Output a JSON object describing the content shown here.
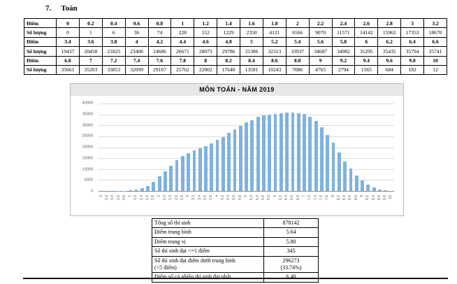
{
  "heading": {
    "number": "7.",
    "text": "Toán"
  },
  "score_table": {
    "score_label": "Điểm",
    "count_label": "Số lượng",
    "groups": [
      {
        "scores": [
          "0",
          "0.2",
          "0.4",
          "0.6",
          "0.8",
          "1",
          "1.2",
          "1.4",
          "1.6",
          "1.8",
          "2",
          "2.2",
          "2.4",
          "2.6",
          "2.8",
          "3",
          "3.2"
        ],
        "counts": [
          "0",
          "1",
          "6",
          "36",
          "74",
          "228",
          "552",
          "1229",
          "2350",
          "4121",
          "6566",
          "9070",
          "11571",
          "14142",
          "15962",
          "17353",
          "18670"
        ]
      },
      {
        "scores": [
          "3.4",
          "3.6",
          "3.8",
          "4",
          "4.2",
          "4.4",
          "4.6",
          "4.8",
          "5",
          "5.2",
          "5.4",
          "5.6",
          "5.8",
          "6",
          "6.2",
          "6.4",
          "6.6"
        ],
        "counts": [
          "19437",
          "20458",
          "21825",
          "23406",
          "24686",
          "26671",
          "28073",
          "29786",
          "31386",
          "32313",
          "33937",
          "34687",
          "34982",
          "35295",
          "35435",
          "35794",
          "35741"
        ]
      },
      {
        "scores": [
          "6.8",
          "7",
          "7.2",
          "7.4",
          "7.6",
          "7.8",
          "8",
          "8.2",
          "8.4",
          "8.6",
          "8.8",
          "9",
          "9.2",
          "9.4",
          "9.6",
          "9.8",
          "10"
        ],
        "counts": [
          "35661",
          "35203",
          "33853",
          "32099",
          "29167",
          "25762",
          "22002",
          "17640",
          "13581",
          "10243",
          "7086",
          "4765",
          "2794",
          "1565",
          "684",
          "182",
          "12"
        ]
      }
    ]
  },
  "chart_data": {
    "type": "bar",
    "title": "MÔN TOÁN - NĂM 2019",
    "categories": [
      "0",
      "0.2",
      "0.4",
      "0.6",
      "0.8",
      "1",
      "1.2",
      "1.4",
      "1.6",
      "1.8",
      "2",
      "2.2",
      "2.4",
      "2.6",
      "2.8",
      "3",
      "3.2",
      "3.4",
      "3.6",
      "3.8",
      "4",
      "4.2",
      "4.4",
      "4.6",
      "4.8",
      "5",
      "5.2",
      "5.4",
      "5.6",
      "5.8",
      "6",
      "6.2",
      "6.4",
      "6.6",
      "6.8",
      "7",
      "7.2",
      "7.4",
      "7.6",
      "7.8",
      "8",
      "8.2",
      "8.4",
      "8.6",
      "8.8",
      "9",
      "9.2",
      "9.4",
      "9.6",
      "9.8",
      "10"
    ],
    "values": [
      0,
      1,
      6,
      36,
      74,
      228,
      552,
      1229,
      2350,
      4121,
      6566,
      9070,
      11571,
      14142,
      15962,
      17353,
      18670,
      19437,
      20458,
      21825,
      23406,
      24686,
      26671,
      28073,
      29786,
      31386,
      32313,
      33937,
      34687,
      34982,
      35295,
      35435,
      35794,
      35741,
      35661,
      35203,
      33853,
      32099,
      29167,
      25762,
      22002,
      17640,
      13581,
      10243,
      7086,
      4765,
      2794,
      1565,
      684,
      182,
      12
    ],
    "xlabel": "",
    "ylabel": "",
    "ylim": [
      0,
      40000
    ],
    "yticks": [
      0,
      5000,
      10000,
      15000,
      20000,
      25000,
      30000,
      35000,
      40000
    ],
    "grid": true,
    "legend_position": "none",
    "bar_color": "#7fb2de",
    "title_band_color": "#e8e8e8"
  },
  "summary_table": {
    "rows": [
      {
        "label": "Tổng số thí sinh",
        "value": "878142"
      },
      {
        "label": "Điểm trung bình",
        "value": "5.64"
      },
      {
        "label": "Điểm trung vị",
        "value": "5.80"
      },
      {
        "label": "Số thí sinh đạt <=1 điểm",
        "value": "345"
      },
      {
        "label": "Số thí sinh đạt điểm dưới trung bình\n(<5 điểm)",
        "value": "296273\n(33.74%)"
      },
      {
        "label": "Điểm số có nhiều thí sinh đạt nhất",
        "value": "6.40"
      }
    ]
  }
}
